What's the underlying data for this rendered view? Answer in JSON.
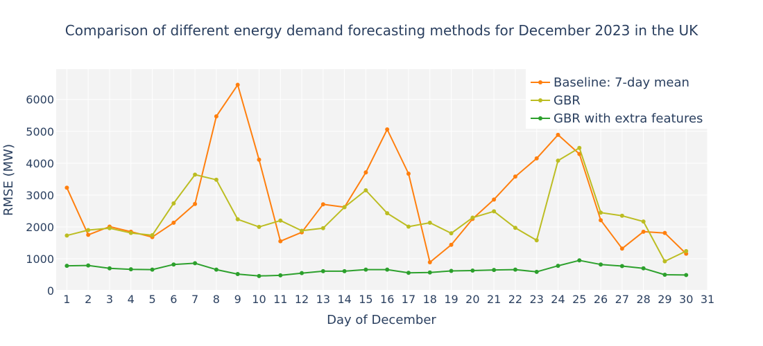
{
  "chart_data": {
    "type": "line",
    "title": "Comparison of different energy demand forecasting methods for December 2023 in the UK",
    "xlabel": "Day of December",
    "ylabel": "RMSE (MW)",
    "xlim": [
      0.5,
      31
    ],
    "ylim": [
      0,
      6950
    ],
    "x_ticks": [
      1,
      2,
      3,
      4,
      5,
      6,
      7,
      8,
      9,
      10,
      11,
      12,
      13,
      14,
      15,
      16,
      17,
      18,
      19,
      20,
      21,
      22,
      23,
      24,
      25,
      26,
      27,
      28,
      29,
      30,
      31
    ],
    "y_ticks": [
      0,
      1000,
      2000,
      3000,
      4000,
      5000,
      6000
    ],
    "grid": true,
    "legend_position": "top-right",
    "background_color": "#f3f3f3",
    "x": [
      1,
      2,
      3,
      4,
      5,
      6,
      7,
      8,
      9,
      10,
      11,
      12,
      13,
      14,
      15,
      16,
      17,
      18,
      19,
      20,
      21,
      22,
      23,
      24,
      25,
      26,
      27,
      28,
      29,
      30
    ],
    "series": [
      {
        "name": "Baseline: 7-day mean",
        "color": "#ff7f0e",
        "values": [
          3230,
          1750,
          2010,
          1850,
          1680,
          2130,
          2720,
          5470,
          6460,
          4110,
          1550,
          1830,
          2710,
          2620,
          3710,
          5060,
          3670,
          890,
          1440,
          2250,
          2860,
          3580,
          4150,
          4890,
          4290,
          2210,
          1320,
          1850,
          1810,
          1160
        ]
      },
      {
        "name": "GBR",
        "color": "#bcbd22",
        "values": [
          1730,
          1900,
          1960,
          1810,
          1740,
          2740,
          3640,
          3480,
          2240,
          2000,
          2200,
          1880,
          1960,
          2620,
          3150,
          2430,
          2010,
          2130,
          1800,
          2290,
          2490,
          1970,
          1580,
          4080,
          4480,
          2450,
          2350,
          2170,
          920,
          1240
        ]
      },
      {
        "name": "GBR with extra features",
        "color": "#2ca02c",
        "values": [
          780,
          790,
          700,
          670,
          660,
          820,
          860,
          660,
          520,
          460,
          480,
          550,
          610,
          610,
          660,
          660,
          560,
          570,
          620,
          630,
          650,
          660,
          590,
          780,
          950,
          820,
          770,
          700,
          500,
          490
        ]
      }
    ]
  }
}
